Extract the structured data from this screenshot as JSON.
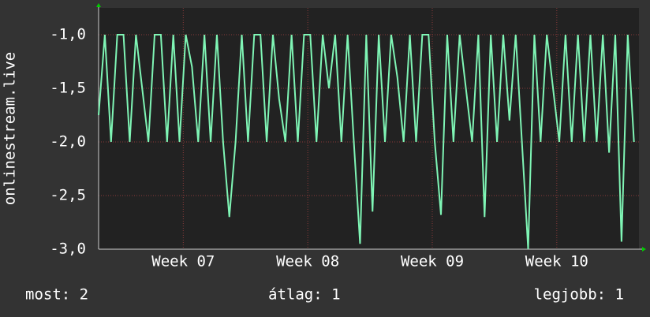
{
  "chart_data": {
    "type": "line",
    "y_label": "onlinestream.live",
    "x": [
      6.32,
      6.37,
      6.42,
      6.47,
      6.52,
      6.57,
      6.62,
      6.67,
      6.72,
      6.77,
      6.82,
      6.87,
      6.92,
      6.97,
      7.02,
      7.07,
      7.12,
      7.17,
      7.22,
      7.27,
      7.32,
      7.37,
      7.42,
      7.47,
      7.52,
      7.57,
      7.62,
      7.67,
      7.72,
      7.77,
      7.82,
      7.87,
      7.92,
      7.97,
      8.02,
      8.07,
      8.12,
      8.17,
      8.22,
      8.27,
      8.32,
      8.37,
      8.42,
      8.47,
      8.52,
      8.57,
      8.62,
      8.67,
      8.72,
      8.77,
      8.82,
      8.87,
      8.92,
      8.97,
      9.02,
      9.07,
      9.12,
      9.17,
      9.22,
      9.27,
      9.32,
      9.37,
      9.42,
      9.47,
      9.52,
      9.57,
      9.62,
      9.67,
      9.72,
      9.77,
      9.82,
      9.87,
      9.92,
      9.97,
      10.02,
      10.07,
      10.12,
      10.17,
      10.22,
      10.27,
      10.32,
      10.37,
      10.42,
      10.47,
      10.52,
      10.57,
      10.62
    ],
    "series": [
      {
        "color": "#7ff5b5",
        "values": [
          -1.75,
          -1.0,
          -2.0,
          -1.0,
          -1.0,
          -2.0,
          -1.0,
          -1.5,
          -2.0,
          -1.0,
          -1.0,
          -2.0,
          -1.0,
          -2.0,
          -1.0,
          -1.3,
          -2.0,
          -1.0,
          -2.0,
          -1.0,
          -2.0,
          -2.7,
          -2.0,
          -1.0,
          -2.0,
          -1.0,
          -1.0,
          -2.0,
          -1.0,
          -1.6,
          -2.0,
          -1.0,
          -2.0,
          -1.0,
          -1.0,
          -2.0,
          -1.0,
          -1.5,
          -1.0,
          -2.0,
          -1.0,
          -2.0,
          -2.95,
          -1.0,
          -2.65,
          -1.0,
          -2.0,
          -1.0,
          -1.4,
          -2.0,
          -1.0,
          -2.0,
          -1.0,
          -1.0,
          -2.0,
          -2.68,
          -1.0,
          -2.0,
          -1.0,
          -1.5,
          -2.0,
          -1.0,
          -2.7,
          -1.0,
          -2.0,
          -1.0,
          -1.8,
          -1.0,
          -2.0,
          -3.0,
          -1.0,
          -2.0,
          -1.0,
          -1.5,
          -2.0,
          -1.0,
          -2.0,
          -1.0,
          -2.0,
          -1.0,
          -2.0,
          -1.0,
          -2.1,
          -1.0,
          -2.93,
          -1.0,
          -2.0
        ]
      }
    ],
    "xlim": [
      6.32,
      10.66
    ],
    "xticks": [
      {
        "value": 7,
        "label": "Week 07"
      },
      {
        "value": 8,
        "label": "Week 08"
      },
      {
        "value": 9,
        "label": "Week 09"
      },
      {
        "value": 10,
        "label": "Week 10"
      }
    ],
    "ylim": [
      -3.0,
      -0.75
    ],
    "yticks": [
      {
        "value": -3,
        "label": "-3,0"
      },
      {
        "value": -2.5,
        "label": "-2,5"
      },
      {
        "value": -2,
        "label": "-2,0"
      },
      {
        "value": -1.5,
        "label": "-1,5"
      },
      {
        "value": -1,
        "label": "-1,0"
      }
    ],
    "grid": true,
    "legend_stats": [
      "most: 2",
      "átlag: 1",
      "legjobb: 1"
    ]
  }
}
